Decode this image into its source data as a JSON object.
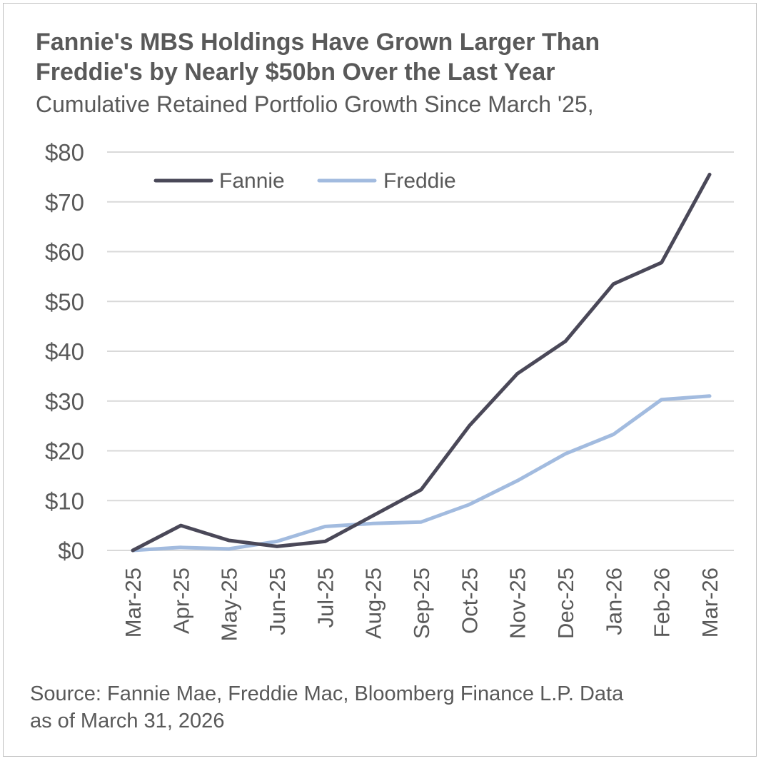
{
  "chart_data": {
    "type": "line",
    "title_lines": [
      "Fannie's MBS Holdings Have Grown Larger Than",
      "Freddie's by Nearly $50bn Over the Last Year"
    ],
    "subtitle": "Cumulative Retained Portfolio Growth Since March '25,",
    "categories": [
      "Mar-25",
      "Apr-25",
      "May-25",
      "Jun-25",
      "Jul-25",
      "Aug-25",
      "Sep-25",
      "Oct-25",
      "Nov-25",
      "Dec-25",
      "Jan-26",
      "Feb-26",
      "Mar-26"
    ],
    "series": [
      {
        "name": "Fannie",
        "color": "#4a4858",
        "values": [
          0,
          5,
          2,
          0.8,
          1.8,
          7,
          12.2,
          25,
          35.5,
          42,
          53.5,
          57.8,
          75.5
        ]
      },
      {
        "name": "Freddie",
        "color": "#a2bbdf",
        "values": [
          0,
          0.6,
          0.3,
          1.8,
          4.8,
          5.4,
          5.7,
          9.2,
          14,
          19.4,
          23.3,
          30.3,
          31
        ]
      }
    ],
    "y_ticks": [
      0,
      10,
      20,
      30,
      40,
      50,
      60,
      70,
      80
    ],
    "y_tick_labels": [
      "$0",
      "$10",
      "$20",
      "$30",
      "$40",
      "$50",
      "$60",
      "$70",
      "$80"
    ],
    "ylim": [
      0,
      80
    ],
    "grid": true,
    "legend_position": "top-left",
    "source_lines": [
      "Source: Fannie Mae, Freddie Mac, Bloomberg Finance L.P. Data",
      "as of March 31, 2026"
    ]
  }
}
